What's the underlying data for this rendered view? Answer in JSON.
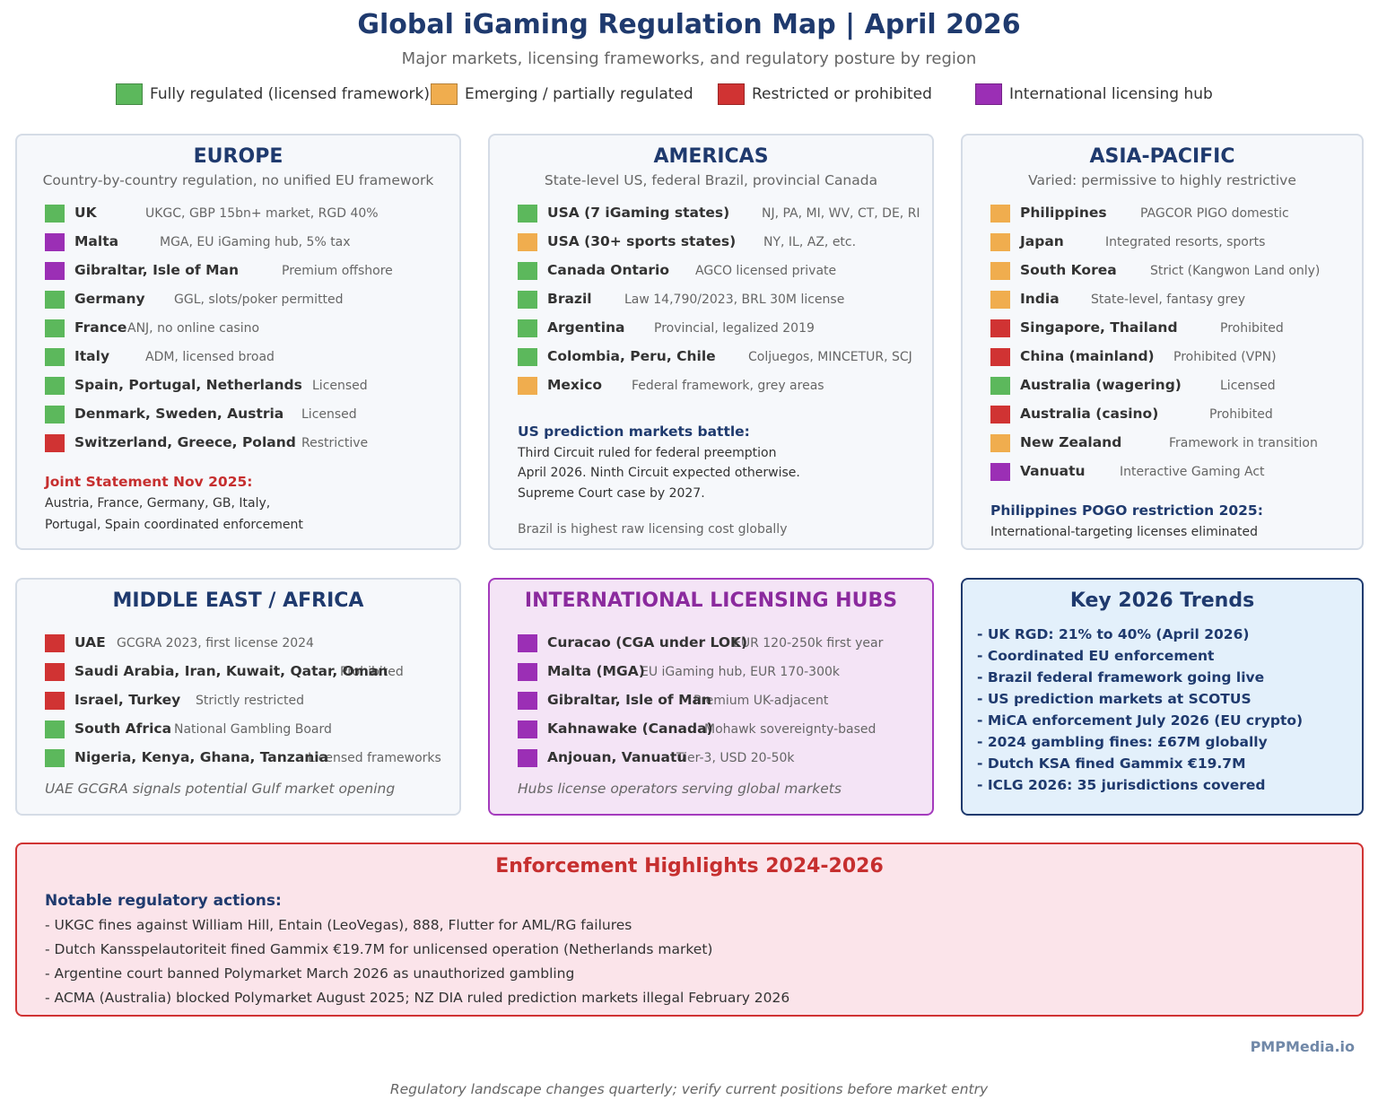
{
  "title": "Global iGaming Regulation Map | April 2026",
  "subtitle": "Major markets, licensing frameworks, and regulatory posture by region",
  "colors": {
    "regulated": "#5cb85c",
    "emerging": "#f0ad4e",
    "restricted": "#d03333",
    "hub": "#9b2fb5"
  },
  "legend": [
    {
      "label": "Fully regulated (licensed framework)",
      "status": "regulated"
    },
    {
      "label": "Emerging / partially regulated",
      "status": "emerging"
    },
    {
      "label": "Restricted or prohibited",
      "status": "restricted"
    },
    {
      "label": "International licensing hub",
      "status": "hub"
    }
  ],
  "europe": {
    "title": "EUROPE",
    "subtitle": "Country-by-country regulation, no unified EU framework",
    "items": [
      {
        "name": "UK",
        "desc": "UKGC, GBP 15bn+ market, RGD 40%",
        "status": "regulated"
      },
      {
        "name": "Malta",
        "desc": "MGA, EU iGaming hub, 5% tax",
        "status": "hub"
      },
      {
        "name": "Gibraltar, Isle of Man",
        "desc": "Premium offshore",
        "status": "hub"
      },
      {
        "name": "Germany",
        "desc": "GGL, slots/poker permitted",
        "status": "regulated"
      },
      {
        "name": "France",
        "desc": "ANJ, no online casino",
        "status": "regulated"
      },
      {
        "name": "Italy",
        "desc": "ADM, licensed broad",
        "status": "regulated"
      },
      {
        "name": "Spain, Portugal, Netherlands",
        "desc": "Licensed",
        "status": "regulated"
      },
      {
        "name": "Denmark, Sweden, Austria",
        "desc": "Licensed",
        "status": "regulated"
      },
      {
        "name": "Switzerland, Greece, Poland",
        "desc": "Restrictive",
        "status": "restricted"
      }
    ],
    "note_title": "Joint Statement Nov 2025:",
    "note_lines": [
      "Austria, France, Germany, GB, Italy,",
      "Portugal, Spain coordinated enforcement"
    ]
  },
  "americas": {
    "title": "AMERICAS",
    "subtitle": "State-level US, federal Brazil, provincial Canada",
    "items": [
      {
        "name": "USA (7 iGaming states)",
        "desc": "NJ, PA, MI, WV, CT, DE, RI",
        "status": "regulated"
      },
      {
        "name": "USA (30+ sports states)",
        "desc": "NY, IL, AZ, etc.",
        "status": "emerging"
      },
      {
        "name": "Canada Ontario",
        "desc": "AGCO licensed private",
        "status": "regulated"
      },
      {
        "name": "Brazil",
        "desc": "Law 14,790/2023, BRL 30M license",
        "status": "regulated"
      },
      {
        "name": "Argentina",
        "desc": "Provincial, legalized 2019",
        "status": "regulated"
      },
      {
        "name": "Colombia, Peru, Chile",
        "desc": "Coljuegos, MINCETUR, SCJ",
        "status": "regulated"
      },
      {
        "name": "Mexico",
        "desc": "Federal framework, grey areas",
        "status": "emerging"
      }
    ],
    "note_title": "US prediction markets battle:",
    "note_lines": [
      "Third Circuit ruled for federal preemption",
      "April 2026. Ninth Circuit expected otherwise.",
      "Supreme Court case by 2027."
    ],
    "note_footer": "Brazil is highest raw licensing cost globally"
  },
  "asia": {
    "title": "ASIA-PACIFIC",
    "subtitle": "Varied: permissive to highly restrictive",
    "items": [
      {
        "name": "Philippines",
        "desc": "PAGCOR PIGO domestic",
        "status": "emerging"
      },
      {
        "name": "Japan",
        "desc": "Integrated resorts, sports",
        "status": "emerging"
      },
      {
        "name": "South Korea",
        "desc": "Strict (Kangwon Land only)",
        "status": "emerging"
      },
      {
        "name": "India",
        "desc": "State-level, fantasy grey",
        "status": "emerging"
      },
      {
        "name": "Singapore, Thailand",
        "desc": "Prohibited",
        "status": "restricted"
      },
      {
        "name": "China (mainland)",
        "desc": "Prohibited (VPN)",
        "status": "restricted"
      },
      {
        "name": "Australia (wagering)",
        "desc": "Licensed",
        "status": "regulated"
      },
      {
        "name": "Australia (casino)",
        "desc": "Prohibited",
        "status": "restricted"
      },
      {
        "name": "New Zealand",
        "desc": "Framework in transition",
        "status": "emerging"
      },
      {
        "name": "Vanuatu",
        "desc": "Interactive Gaming Act",
        "status": "hub"
      }
    ],
    "note_title": "Philippines POGO restriction 2025:",
    "note_lines": [
      "International-targeting licenses eliminated"
    ]
  },
  "mea": {
    "title": "MIDDLE EAST / AFRICA",
    "items": [
      {
        "name": "UAE",
        "desc": "GCGRA 2023, first license 2024",
        "status": "restricted"
      },
      {
        "name": "Saudi Arabia, Iran, Kuwait, Qatar, Oman",
        "desc": "Prohibited",
        "status": "restricted"
      },
      {
        "name": "Israel, Turkey",
        "desc": "Strictly restricted",
        "status": "restricted"
      },
      {
        "name": "South Africa",
        "desc": "National Gambling Board",
        "status": "regulated"
      },
      {
        "name": "Nigeria, Kenya, Ghana, Tanzania",
        "desc": "Licensed frameworks",
        "status": "regulated"
      }
    ],
    "footer": "UAE GCGRA signals potential Gulf market opening"
  },
  "hubs": {
    "title": "INTERNATIONAL LICENSING HUBS",
    "items": [
      {
        "name": "Curacao (CGA under LOK)",
        "desc": "EUR 120-250k first year",
        "status": "hub"
      },
      {
        "name": "Malta (MGA)",
        "desc": "EU iGaming hub, EUR 170-300k",
        "status": "hub"
      },
      {
        "name": "Gibraltar, Isle of Man",
        "desc": "Premium UK-adjacent",
        "status": "hub"
      },
      {
        "name": "Kahnawake (Canada)",
        "desc": "Mohawk sovereignty-based",
        "status": "hub"
      },
      {
        "name": "Anjouan, Vanuatu",
        "desc": "Tier-3, USD 20-50k",
        "status": "hub"
      }
    ],
    "footer": "Hubs license operators serving global markets"
  },
  "trends": {
    "title": "Key 2026 Trends",
    "items": [
      "- UK RGD: 21% to 40% (April 2026)",
      "- Coordinated EU enforcement",
      "- Brazil federal framework going live",
      "- US prediction markets at SCOTUS",
      "- MiCA enforcement July 2026 (EU crypto)",
      "- 2024 gambling fines: £67M globally",
      "- Dutch KSA fined Gammix €19.7M",
      "- ICLG 2026: 35 jurisdictions covered"
    ]
  },
  "enforcement": {
    "title": "Enforcement Highlights 2024-2026",
    "heading": "Notable regulatory actions:",
    "items": [
      "- UKGC fines against William Hill, Entain (LeoVegas), 888, Flutter for AML/RG failures",
      "- Dutch Kansspelautoriteit fined Gammix €19.7M for unlicensed operation (Netherlands market)",
      "- Argentine court banned Polymarket March 2026 as unauthorized gambling",
      "- ACMA (Australia) blocked Polymarket August 2025; NZ DIA ruled prediction markets illegal February 2026"
    ]
  },
  "brand": "PMPMedia.io",
  "footer": "Regulatory landscape changes quarterly; verify current positions before market entry"
}
